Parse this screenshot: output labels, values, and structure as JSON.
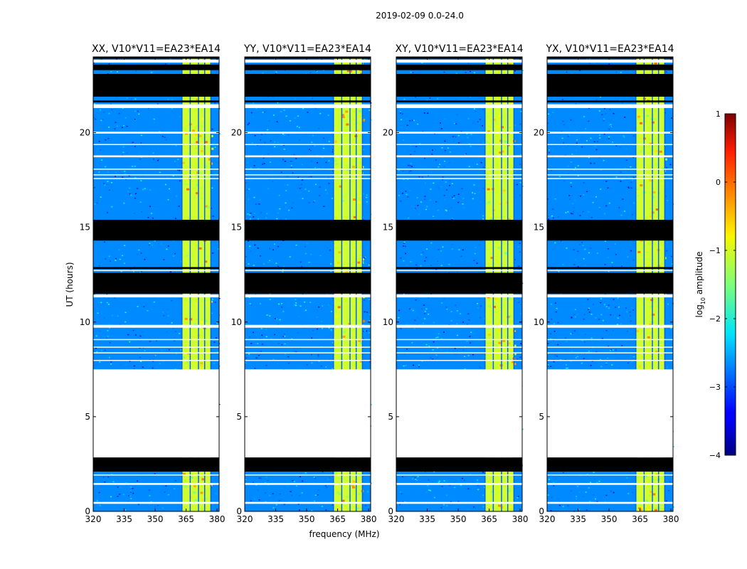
{
  "chart_data": {
    "type": "heatmap",
    "suptitle": "2019-02-09 0.0-24.0",
    "xlabel": "frequency (MHz)",
    "ylabel": "UT (hours)",
    "xlim": [
      320,
      381
    ],
    "ylim": [
      0,
      24
    ],
    "x_ticks": [
      320,
      335,
      350,
      365,
      380
    ],
    "y_ticks": [
      0,
      5,
      10,
      15,
      20
    ],
    "panels": [
      {
        "title": "XX, V10*V11=EA23*EA14"
      },
      {
        "title": "YY, V10*V11=EA23*EA14"
      },
      {
        "title": "XY, V10*V11=EA23*EA14"
      },
      {
        "title": "YX, V10*V11=EA23*EA14"
      }
    ],
    "colorbar": {
      "label_prefix": "log",
      "label_sub": "10",
      "label_suffix": " amplitude",
      "range": [
        -4,
        1
      ],
      "ticks": [
        {
          "value": 1,
          "label": "1"
        },
        {
          "value": 0,
          "label": "0"
        },
        {
          "value": -1,
          "label": "−1"
        },
        {
          "value": -2,
          "label": "−2"
        },
        {
          "value": -3,
          "label": "−3"
        },
        {
          "value": -4,
          "label": "−4"
        }
      ]
    },
    "flagged_hours": [
      [
        24.0,
        23.9
      ],
      [
        23.6,
        23.3
      ],
      [
        23.1,
        21.9
      ],
      [
        21.7,
        21.6
      ],
      [
        15.4,
        14.3
      ],
      [
        12.9,
        12.8
      ],
      [
        12.6,
        11.5
      ],
      [
        2.85,
        2.1
      ]
    ],
    "empty_hours": [
      [
        7.5,
        2.85
      ]
    ],
    "gap_hours": [
      [
        23.85,
        23.7
      ],
      [
        21.5,
        21.3
      ],
      [
        20.05,
        19.95
      ],
      [
        19.4,
        19.35
      ],
      [
        18.8,
        18.7
      ],
      [
        18.1,
        18.05
      ],
      [
        17.8,
        17.75
      ],
      [
        17.6,
        17.55
      ],
      [
        12.75,
        12.7
      ],
      [
        11.45,
        11.3
      ],
      [
        9.85,
        9.7
      ],
      [
        9.1,
        9.05
      ],
      [
        8.7,
        8.65
      ],
      [
        8.4,
        8.35
      ],
      [
        8.0,
        7.95
      ],
      [
        1.95,
        1.9
      ],
      [
        1.5,
        1.4
      ],
      [
        0.5,
        0.4
      ]
    ],
    "signal_band_mhz": [
      363,
      377
    ],
    "signal_band_edges_mhz": [
      363,
      367,
      371,
      374,
      377
    ],
    "background_level": -2.7,
    "band_level": -1.1
  }
}
